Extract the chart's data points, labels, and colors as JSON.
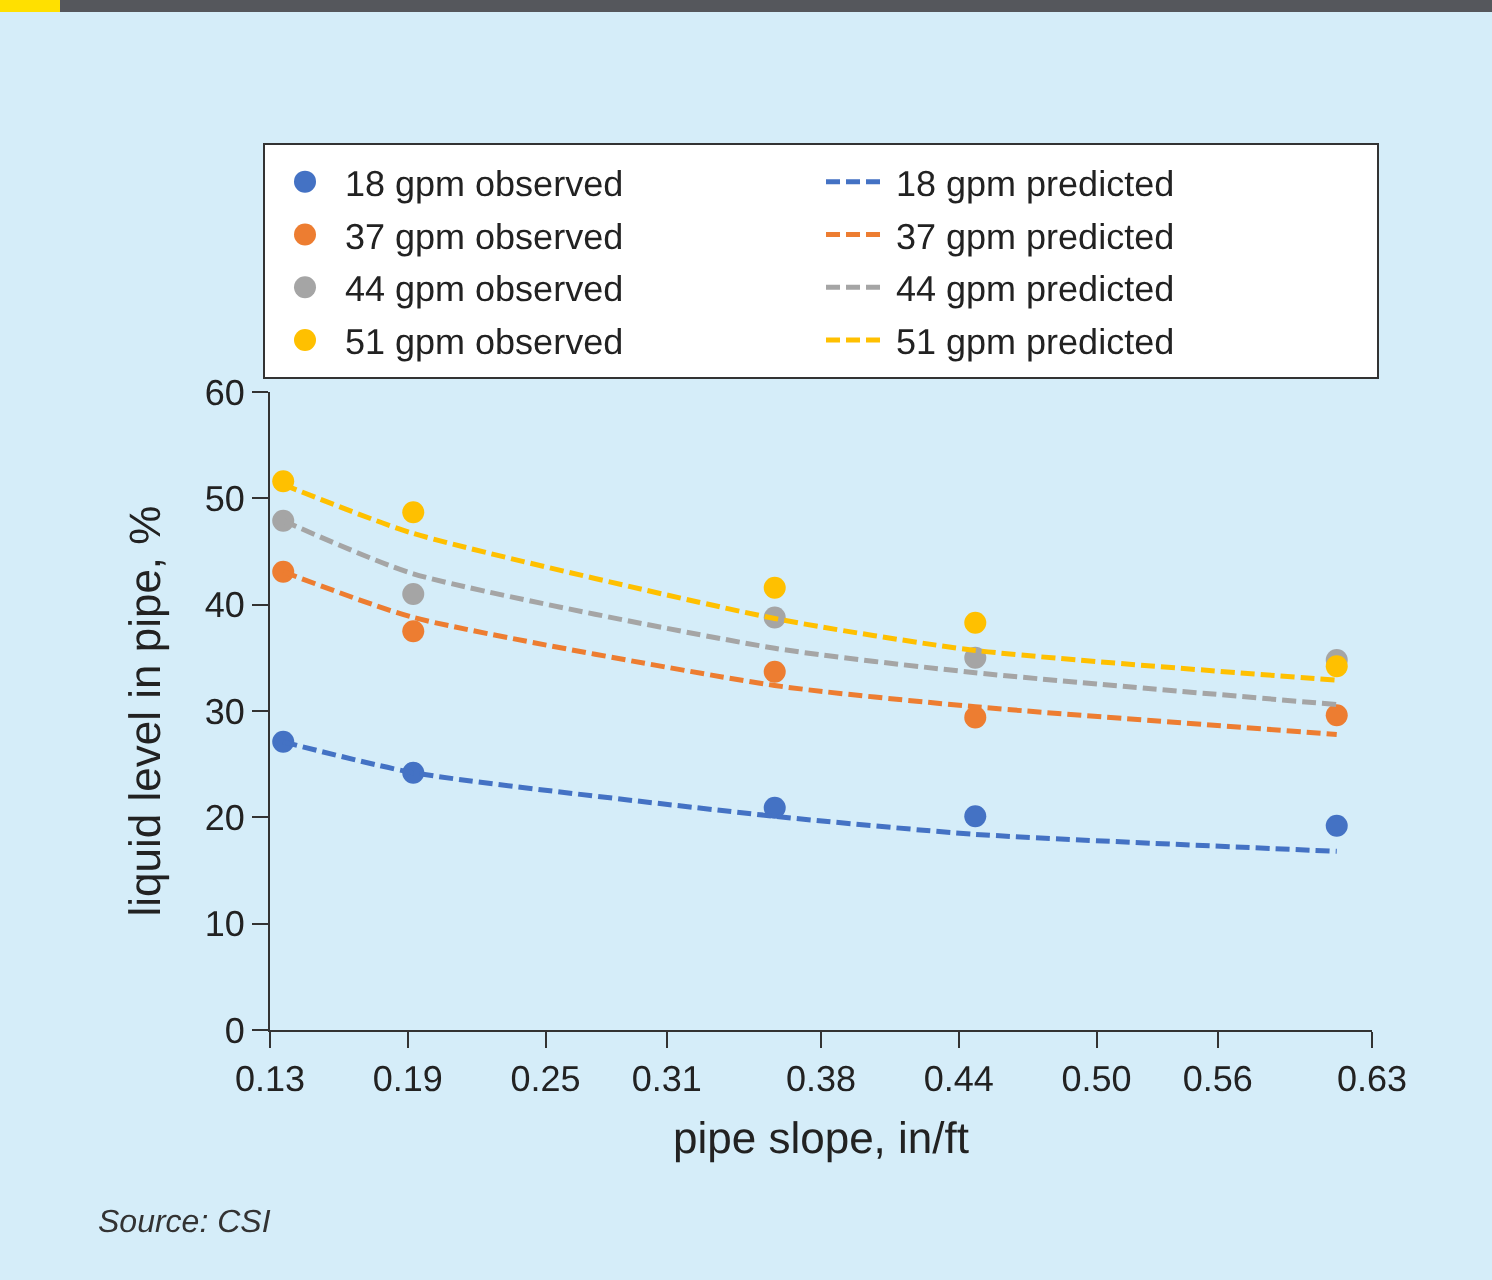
{
  "chart_data": {
    "type": "scatter",
    "xlabel": "pipe slope, in/ft",
    "ylabel": "liquid level in pipe, %",
    "xlim": [
      0.13,
      0.63
    ],
    "xticks": [
      {
        "value": 0.13,
        "label": "0.13"
      },
      {
        "value": 0.1925,
        "label": "0.19"
      },
      {
        "value": 0.255,
        "label": "0.25"
      },
      {
        "value": 0.31,
        "label": "0.31"
      },
      {
        "value": 0.38,
        "label": "0.38"
      },
      {
        "value": 0.4425,
        "label": "0.44"
      },
      {
        "value": 0.505,
        "label": "0.50"
      },
      {
        "value": 0.56,
        "label": "0.56"
      },
      {
        "value": 0.63,
        "label": "0.63"
      }
    ],
    "ylim": [
      0,
      60
    ],
    "yticks": [
      0,
      10,
      20,
      30,
      40,
      50,
      60
    ],
    "grid": false,
    "legend": "top",
    "line_style": "dashed",
    "annotations": [
      "Source: CSI"
    ],
    "series": [
      {
        "name": "18 gpm observed",
        "marker": "circle",
        "color": "#4472c4",
        "x": [
          0.136,
          0.195,
          0.359,
          0.45,
          0.614
        ],
        "values": [
          27.1,
          24.2,
          20.9,
          20.1,
          19.2
        ]
      },
      {
        "name": "18 gpm predicted",
        "type": "line",
        "color": "#4472c4",
        "x": [
          0.136,
          0.195,
          0.359,
          0.45,
          0.614
        ],
        "values": [
          27.1,
          24.2,
          20.1,
          18.4,
          16.8
        ]
      },
      {
        "name": "37 gpm observed",
        "marker": "circle",
        "color": "#ed7d31",
        "x": [
          0.136,
          0.195,
          0.359,
          0.45,
          0.614
        ],
        "values": [
          43.1,
          37.5,
          33.7,
          29.4,
          29.6
        ]
      },
      {
        "name": "37 gpm predicted",
        "type": "line",
        "color": "#ed7d31",
        "x": [
          0.136,
          0.195,
          0.359,
          0.45,
          0.614
        ],
        "values": [
          43.1,
          38.8,
          32.4,
          30.4,
          27.8
        ]
      },
      {
        "name": "44 gpm observed",
        "marker": "circle",
        "color": "#a5a5a5",
        "x": [
          0.136,
          0.195,
          0.359,
          0.45,
          0.614
        ],
        "values": [
          47.9,
          41.0,
          38.8,
          35.0,
          34.8
        ]
      },
      {
        "name": "44 gpm predicted",
        "type": "line",
        "color": "#a5a5a5",
        "x": [
          0.136,
          0.195,
          0.359,
          0.45,
          0.614
        ],
        "values": [
          47.9,
          42.9,
          35.9,
          33.6,
          30.6
        ]
      },
      {
        "name": "51 gpm observed",
        "marker": "circle",
        "color": "#ffc000",
        "x": [
          0.136,
          0.195,
          0.359,
          0.45,
          0.614
        ],
        "values": [
          51.6,
          48.7,
          41.6,
          38.3,
          34.2
        ]
      },
      {
        "name": "51 gpm predicted",
        "type": "line",
        "color": "#ffc000",
        "x": [
          0.136,
          0.195,
          0.359,
          0.45,
          0.614
        ],
        "values": [
          51.3,
          46.7,
          38.7,
          35.7,
          32.9
        ]
      }
    ]
  }
}
